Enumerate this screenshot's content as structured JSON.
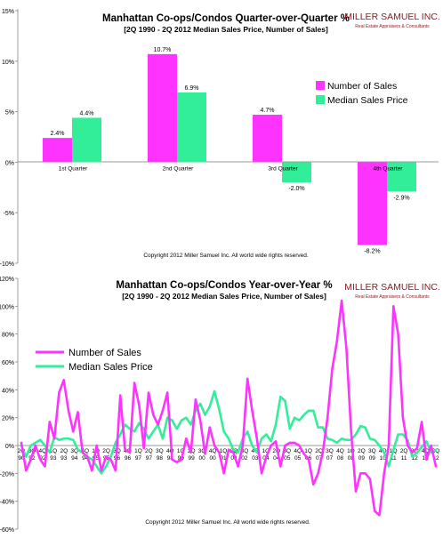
{
  "brand": {
    "name": "MILLER SAMUEL INC.",
    "tagline": "Real Estate Appraisers & Consultants",
    "accent": "#8b1a1a"
  },
  "colors": {
    "sales": "#ff33ff",
    "price": "#33ee99"
  },
  "chart_data": [
    {
      "type": "bar",
      "title": "Manhattan Co-ops/Condos Quarter-over-Quarter %",
      "subtitle": "[2Q 1990 - 2Q 2012 Median Sales Price, Number of Sales]",
      "categories": [
        "1st Quarter",
        "2nd Quarter",
        "3rd Quarter",
        "4th Quarter"
      ],
      "series": [
        {
          "name": "Number of Sales",
          "values": [
            2.4,
            10.7,
            4.7,
            -8.2
          ],
          "labels": [
            "2.4%",
            "10.7%",
            "4.7%",
            "-8.2%"
          ]
        },
        {
          "name": "Median Sales Price",
          "values": [
            4.4,
            6.9,
            -2.0,
            -2.9
          ],
          "labels": [
            "4.4%",
            "6.9%",
            "-2.0%",
            "-2.9%"
          ]
        }
      ],
      "ylim": [
        -10,
        15
      ],
      "yticks": [
        -10,
        -5,
        0,
        5,
        10,
        15
      ],
      "ytick_labels": [
        "-10%",
        "-5%",
        "0%",
        "5%",
        "10%",
        "15%"
      ],
      "legend": "right",
      "grid": false,
      "copyright": "Copyright 2012 Miller Samuel Inc.  All world wide rights reserved."
    },
    {
      "type": "line",
      "title": "Manhattan Co-ops/Condos Year-over-Year %",
      "subtitle": "[2Q 1990 - 2Q 2012 Median Sales Price, Number of Sales]",
      "x": [
        "2Q90",
        "3Q90",
        "4Q90",
        "1Q91",
        "2Q91",
        "3Q91",
        "4Q91",
        "1Q92",
        "2Q92",
        "3Q92",
        "4Q92",
        "1Q93",
        "2Q93",
        "3Q93",
        "4Q93",
        "1Q94",
        "2Q94",
        "3Q94",
        "4Q94",
        "1Q95",
        "2Q95",
        "3Q95",
        "4Q95",
        "1Q96",
        "2Q96",
        "3Q96",
        "4Q96",
        "1Q97",
        "2Q97",
        "3Q97",
        "4Q97",
        "1Q98",
        "2Q98",
        "3Q98",
        "4Q98",
        "1Q99",
        "2Q99",
        "3Q99",
        "4Q99",
        "1Q00",
        "2Q00",
        "3Q00",
        "4Q00",
        "1Q01",
        "2Q01",
        "3Q01",
        "4Q01",
        "1Q02",
        "2Q02",
        "3Q02",
        "4Q02",
        "1Q03",
        "2Q03",
        "3Q03",
        "4Q03",
        "1Q04",
        "2Q04",
        "3Q04",
        "4Q04",
        "1Q05",
        "2Q05",
        "3Q05",
        "4Q05",
        "1Q06",
        "2Q06",
        "3Q06",
        "4Q06",
        "1Q07",
        "2Q07",
        "3Q07",
        "4Q07",
        "1Q08",
        "2Q08",
        "3Q08",
        "4Q08",
        "1Q09",
        "2Q09",
        "3Q09",
        "4Q09",
        "1Q10",
        "2Q10",
        "3Q10",
        "4Q10",
        "1Q11",
        "2Q11",
        "3Q11",
        "4Q11",
        "1Q12",
        "2Q12"
      ],
      "series": [
        {
          "name": "Number of Sales",
          "values": [
            2,
            -18,
            -10,
            0,
            -10,
            -15,
            17,
            5,
            38,
            47,
            25,
            10,
            24,
            -5,
            -8,
            -18,
            0,
            -18,
            -8,
            -10,
            -18,
            36,
            -3,
            -5,
            45,
            29,
            -2,
            38,
            22,
            15,
            25,
            38,
            -10,
            -12,
            -10,
            5,
            -5,
            33,
            18,
            -6,
            13,
            0,
            -5,
            -20,
            -3,
            -5,
            -15,
            0,
            48,
            25,
            5,
            -20,
            -8,
            0,
            3,
            -15,
            0,
            2,
            2,
            0,
            -6,
            -10,
            -28,
            -20,
            -5,
            20,
            55,
            75,
            104,
            70,
            10,
            -33,
            -20,
            -20,
            -24,
            -47,
            -50,
            -20,
            0,
            100,
            80,
            20,
            0,
            -5,
            -2,
            17,
            -10,
            0,
            -15
          ]
        },
        {
          "name": "Median Sales Price",
          "values": [
            0,
            -8,
            0,
            2,
            4,
            0,
            -5,
            6,
            4,
            5,
            5,
            4,
            -3,
            -5,
            -8,
            -10,
            -15,
            -20,
            -15,
            -8,
            2,
            8,
            15,
            12,
            10,
            16,
            12,
            5,
            10,
            15,
            5,
            20,
            18,
            12,
            18,
            20,
            15,
            25,
            30,
            22,
            28,
            39,
            26,
            10,
            5,
            -3,
            -5,
            5,
            10,
            0,
            -5,
            5,
            8,
            3,
            15,
            35,
            32,
            12,
            20,
            18,
            22,
            25,
            25,
            13,
            13,
            5,
            4,
            2,
            5,
            4,
            4,
            8,
            14,
            13,
            5,
            4,
            0,
            -5,
            -15,
            -3,
            8,
            8,
            4,
            -8,
            -5,
            -1,
            3,
            -5,
            -3
          ]
        }
      ],
      "tick_labels": [
        "2Q\n90",
        "3Q\n92",
        "4Q\n92",
        "1Q\n93",
        "2Q\n93",
        "3Q\n94",
        "4Q\n94",
        "1Q\n95",
        "2Q\n95",
        "3Q\n96",
        "4Q\n96",
        "1Q\n97",
        "2Q\n97",
        "3Q\n98",
        "4Q\n98",
        "1Q\n99",
        "2Q\n99",
        "3Q\n00",
        "4Q\n00",
        "1Q\n01",
        "2Q\n02",
        "3Q\n02",
        "4Q\n03",
        "1Q\n04",
        "2Q\n04",
        "3Q\n05",
        "4Q\n05",
        "1Q\n06",
        "2Q\n07",
        "3Q\n07",
        "4Q\n08",
        "1Q\n08",
        "2Q\n09",
        "3Q\n09",
        "4Q\n10",
        "1Q\n11",
        "2Q\n11",
        "3Q\n12",
        "4Q\n12",
        "2Q\n12"
      ],
      "ylim": [
        -60,
        120
      ],
      "yticks": [
        -60,
        -40,
        -20,
        0,
        20,
        40,
        60,
        80,
        100,
        120
      ],
      "ytick_labels": [
        "-60%",
        "-40%",
        "-20%",
        "0%",
        "20%",
        "40%",
        "60%",
        "80%",
        "100%",
        "120%"
      ],
      "legend": "left",
      "grid": false,
      "copyright": "Copyright 2012 Miller Samuel Inc. All world wide rights reserved."
    }
  ]
}
